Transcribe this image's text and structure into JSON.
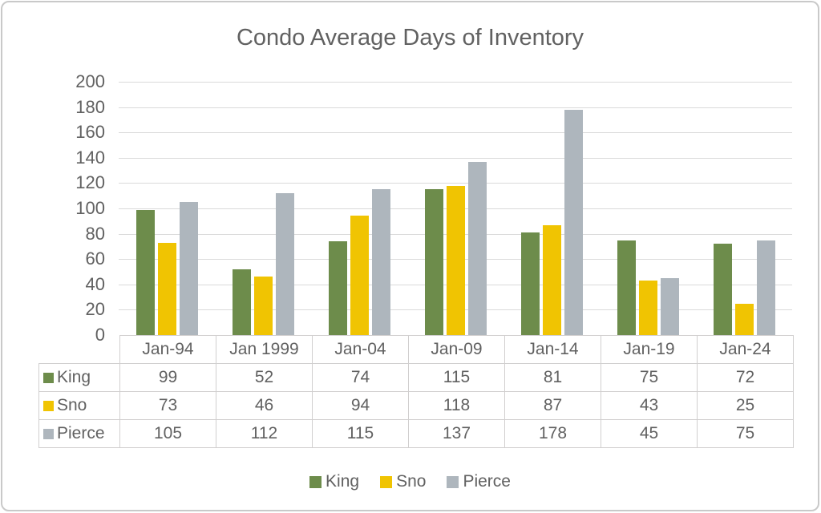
{
  "title": "Condo Average Days of Inventory",
  "chart_data": {
    "type": "bar",
    "title": "Condo Average Days of Inventory",
    "categories": [
      "Jan-94",
      "Jan 1999",
      "Jan-04",
      "Jan-09",
      "Jan-14",
      "Jan-19",
      "Jan-24"
    ],
    "series": [
      {
        "name": "King",
        "color": "#6D8C4B",
        "values": [
          99,
          52,
          74,
          115,
          81,
          75,
          72
        ]
      },
      {
        "name": "Sno",
        "color": "#F0C402",
        "values": [
          73,
          46,
          94,
          118,
          87,
          43,
          25
        ]
      },
      {
        "name": "Pierce",
        "color": "#AEB6BD",
        "values": [
          105,
          112,
          115,
          137,
          178,
          45,
          75
        ]
      }
    ],
    "ylim": [
      0,
      200
    ],
    "ytick_step": 20,
    "grid": true,
    "legend_position": "bottom",
    "data_table_shown": true
  },
  "styles": {
    "text_color": "#616161",
    "grid_color": "#DADADA",
    "table_border_color": "#D1CFCF",
    "frame_border_color": "#C9C9C9",
    "background": "#FFFFFF"
  }
}
